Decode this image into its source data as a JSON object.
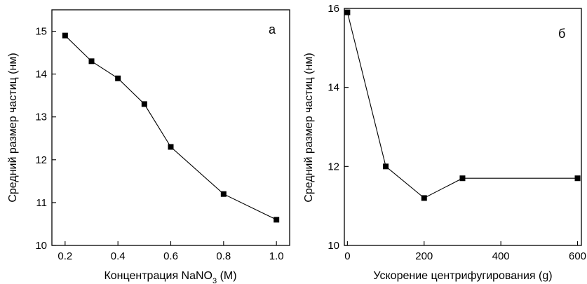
{
  "chart_data": [
    {
      "type": "line",
      "panel_label": "а",
      "xlabel": "Концентрация NaNO",
      "xlabel_sub": "3",
      "xlabel_suffix": " (M)",
      "ylabel": "Средний размер частиц (нм)",
      "xlim": [
        0.15,
        1.05
      ],
      "ylim": [
        10,
        15.5
      ],
      "xticks": [
        0.2,
        0.4,
        0.6,
        0.8,
        1.0
      ],
      "xtick_labels": [
        "0.2",
        "0.4",
        "0.6",
        "0.8",
        "1.0"
      ],
      "yticks": [
        10,
        11,
        12,
        13,
        14,
        15
      ],
      "ytick_labels": [
        "10",
        "11",
        "12",
        "13",
        "14",
        "15"
      ],
      "grid": false,
      "x": [
        0.2,
        0.3,
        0.4,
        0.5,
        0.6,
        0.8,
        1.0
      ],
      "y": [
        14.9,
        14.3,
        13.9,
        13.3,
        12.3,
        11.2,
        10.6
      ]
    },
    {
      "type": "line",
      "panel_label": "б",
      "xlabel": "Ускорение центрифугирования (g)",
      "ylabel": "Средний размер частиц (нм)",
      "xlim": [
        -8,
        610
      ],
      "ylim": [
        10,
        16
      ],
      "xticks": [
        0,
        200,
        400,
        600
      ],
      "xtick_labels": [
        "0",
        "200",
        "400",
        "600"
      ],
      "yticks": [
        10,
        12,
        14,
        16
      ],
      "ytick_labels": [
        "10",
        "12",
        "14",
        "16"
      ],
      "grid": false,
      "x": [
        0,
        100,
        200,
        300,
        600
      ],
      "y": [
        15.9,
        12.0,
        11.2,
        11.7,
        11.7
      ]
    }
  ]
}
